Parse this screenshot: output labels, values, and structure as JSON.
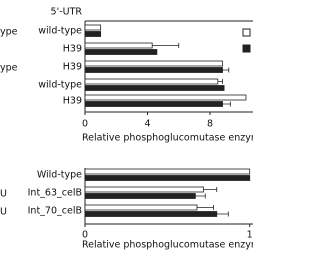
{
  "chart_data": [
    {
      "type": "bar",
      "orientation": "horizontal",
      "category_header": "5'-UTR",
      "group_labels": [
        "ype",
        null,
        "ype",
        null,
        null
      ],
      "categories": [
        "wild-type",
        "H39",
        "H39",
        "wild-type",
        "H39"
      ],
      "series": [
        {
          "color": "#ffffff",
          "values": [
            1.0,
            4.3,
            8.8,
            8.5,
            10.3
          ],
          "errors": [
            null,
            1.7,
            null,
            0.3,
            null
          ]
        },
        {
          "color": "#222222",
          "values": [
            1.0,
            4.6,
            8.8,
            8.9,
            8.8
          ],
          "errors": [
            null,
            null,
            0.4,
            null,
            0.5
          ]
        }
      ],
      "xlim": [
        0,
        10.75
      ],
      "xticks": [
        0,
        4,
        8
      ],
      "x_label": "Relative phosphoglucomutase enzyme"
    },
    {
      "type": "bar",
      "orientation": "horizontal",
      "group_labels": [
        null,
        "U",
        "U"
      ],
      "categories": [
        "Wild-type",
        "Int_63_celB",
        "Int_70_celB"
      ],
      "series": [
        {
          "color": "#ffffff",
          "values": [
            1.0,
            0.72,
            0.68
          ],
          "errors": [
            null,
            0.08,
            0.1
          ]
        },
        {
          "color": "#222222",
          "values": [
            1.0,
            0.67,
            0.8
          ],
          "errors": [
            null,
            0.06,
            0.07
          ]
        }
      ],
      "xlim": [
        0,
        1.02
      ],
      "xticks": [
        0,
        1
      ],
      "x_label": "Relative phosphoglucomutase enzyme"
    }
  ]
}
